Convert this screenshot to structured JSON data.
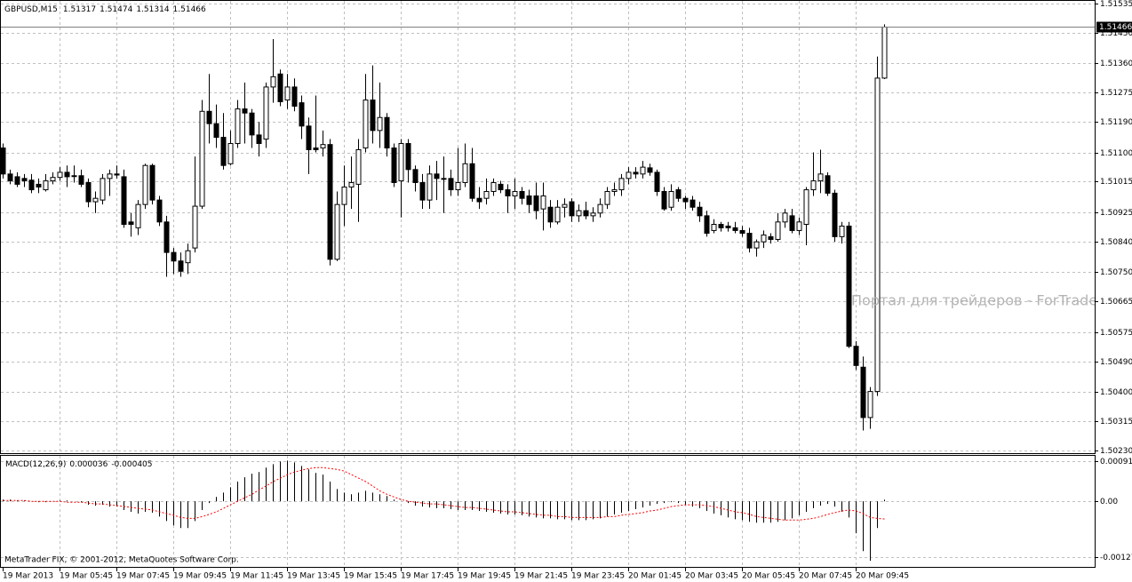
{
  "chart_data": [
    {
      "type": "candlestick",
      "title": "GBPUSD,M15",
      "categories": [
        "19 Mar 2013",
        null,
        null,
        null,
        null,
        null,
        null,
        null,
        "19 Mar 05:45",
        null,
        null,
        null,
        null,
        null,
        null,
        null,
        "19 Mar 07:45",
        null,
        null,
        null,
        null,
        null,
        null,
        null,
        "19 Mar 09:45",
        null,
        null,
        null,
        null,
        null,
        null,
        null,
        "19 Mar 11:45",
        null,
        null,
        null,
        null,
        null,
        null,
        null,
        "19 Mar 13:45",
        null,
        null,
        null,
        null,
        null,
        null,
        null,
        "19 Mar 15:45",
        null,
        null,
        null,
        null,
        null,
        null,
        null,
        "19 Mar 17:45",
        null,
        null,
        null,
        null,
        null,
        null,
        null,
        "19 Mar 19:45",
        null,
        null,
        null,
        null,
        null,
        null,
        null,
        "19 Mar 21:45",
        null,
        null,
        null,
        null,
        null,
        null,
        null,
        "19 Mar 23:45",
        null,
        null,
        null,
        null,
        null,
        null,
        null,
        "20 Mar 01:45",
        null,
        null,
        null,
        null,
        null,
        null,
        null,
        "20 Mar 03:45",
        null,
        null,
        null,
        null,
        null,
        null,
        null,
        "20 Mar 05:45",
        null,
        null,
        null,
        null,
        null,
        null,
        null,
        "20 Mar 07:45",
        null,
        null,
        null,
        null,
        null,
        null,
        null,
        "20 Mar 09:45",
        null,
        null,
        null,
        null
      ],
      "open": [
        1.51113,
        1.51037,
        1.51029,
        1.51024,
        1.51019,
        1.51007,
        1.50991,
        1.51017,
        1.51027,
        1.51042,
        1.51032,
        1.51032,
        1.51012,
        1.50956,
        1.50961,
        1.51024,
        1.51037,
        1.51029,
        1.50897,
        1.5088,
        1.50948,
        1.51062,
        1.50961,
        1.50897,
        1.50808,
        1.50783,
        1.50778,
        1.50821,
        1.50943,
        1.5122,
        1.51184,
        1.51144,
        1.51067,
        1.51126,
        1.51227,
        1.51215,
        1.51151,
        1.51139,
        1.51291,
        1.51329,
        1.51253,
        1.51291,
        1.51245,
        1.51177,
        1.51113,
        1.51113,
        1.51123,
        1.50788,
        1.50948,
        1.50999,
        1.51007,
        1.51113,
        1.51253,
        1.51164,
        1.51202,
        1.51113,
        1.51017,
        1.51126,
        1.5105,
        1.51012,
        1.50961,
        1.51037,
        1.51024,
        1.51024,
        1.50991,
        1.51012,
        1.51067,
        1.50966,
        1.50966,
        1.50986,
        1.51007,
        1.50991,
        1.50973,
        1.50986,
        1.50973,
        1.50973,
        1.50935,
        1.5094,
        1.50897,
        1.5094,
        1.50956,
        1.50915,
        1.5093,
        1.50915,
        1.50923,
        1.50948,
        1.50986,
        1.50991,
        1.51024,
        1.51042,
        1.51037,
        1.51055,
        1.51042,
        1.50986,
        1.5094,
        1.50991,
        1.50966,
        1.50961,
        1.5094,
        1.50915,
        1.50872,
        1.5089,
        1.50885,
        1.5088,
        1.50872,
        1.50864,
        1.50821,
        1.50839,
        1.50854,
        1.50846,
        1.50897,
        1.50915,
        1.50872,
        1.5089,
        1.50991,
        1.51017,
        1.51032,
        1.50981,
        1.50854,
        1.50885,
        1.50534,
        1.50473,
        1.50326,
        1.50402,
        1.51317
      ],
      "high": [
        1.51126,
        1.5105,
        1.51042,
        1.51037,
        1.51037,
        1.51024,
        1.51037,
        1.51042,
        1.51057,
        1.51062,
        1.51062,
        1.5105,
        1.51024,
        1.50986,
        1.51037,
        1.5105,
        1.51062,
        1.5105,
        1.50923,
        1.50961,
        1.51067,
        1.51067,
        1.50973,
        1.50915,
        1.50821,
        1.50808,
        1.50834,
        1.51088,
        1.51253,
        1.51329,
        1.5124,
        1.51215,
        1.51164,
        1.51253,
        1.51304,
        1.51227,
        1.51189,
        1.51304,
        1.51431,
        1.51342,
        1.51329,
        1.51316,
        1.51266,
        1.51202,
        1.51266,
        1.51164,
        1.51139,
        1.50986,
        1.51062,
        1.51088,
        1.51139,
        1.51329,
        1.51354,
        1.51304,
        1.51215,
        1.51126,
        1.51139,
        1.51139,
        1.51062,
        1.51037,
        1.51062,
        1.51075,
        1.51088,
        1.5105,
        1.51113,
        1.51126,
        1.51113,
        1.50999,
        1.51024,
        1.51024,
        1.51017,
        1.51007,
        1.51024,
        1.50999,
        1.50991,
        1.51012,
        1.51012,
        1.50961,
        1.50961,
        1.50966,
        1.50966,
        1.50948,
        1.50956,
        1.5094,
        1.50966,
        1.50999,
        1.51012,
        1.51037,
        1.51057,
        1.51057,
        1.51075,
        1.51067,
        1.5105,
        1.50999,
        1.51007,
        1.50999,
        1.50973,
        1.50973,
        1.50956,
        1.5093,
        1.50905,
        1.50897,
        1.50897,
        1.50897,
        1.50885,
        1.5088,
        1.50846,
        1.50872,
        1.50864,
        1.50923,
        1.50935,
        1.50935,
        1.5091,
        1.50999,
        1.511,
        1.51108,
        1.51042,
        1.50991,
        1.50897,
        1.50897,
        1.50549,
        1.50504,
        1.50415,
        1.5138,
        1.51474
      ],
      "low": [
        1.51024,
        1.51007,
        1.50999,
        1.50999,
        1.50981,
        1.50981,
        1.50986,
        1.51007,
        1.51017,
        1.50999,
        1.51012,
        1.50999,
        1.5094,
        1.50923,
        1.50948,
        1.50973,
        1.51024,
        1.5088,
        1.50854,
        1.50859,
        1.50935,
        1.50948,
        1.50885,
        1.50737,
        1.50745,
        1.50737,
        1.50745,
        1.50808,
        1.50935,
        1.51126,
        1.51113,
        1.5105,
        1.51062,
        1.51113,
        1.51126,
        1.51113,
        1.51088,
        1.51113,
        1.51245,
        1.51235,
        1.51227,
        1.5122,
        1.51139,
        1.51037,
        1.511,
        1.51088,
        1.5077,
        1.50783,
        1.50885,
        1.50935,
        1.50897,
        1.511,
        1.51126,
        1.51113,
        1.51088,
        1.50999,
        1.5091,
        1.51012,
        1.50986,
        1.50935,
        1.50935,
        1.50961,
        1.50923,
        1.50973,
        1.50973,
        1.50999,
        1.50956,
        1.50935,
        1.50948,
        1.50973,
        1.50981,
        1.50923,
        1.50935,
        1.50948,
        1.50923,
        1.50905,
        1.50872,
        1.5088,
        1.5089,
        1.5091,
        1.50897,
        1.50897,
        1.50905,
        1.50897,
        1.5091,
        1.50935,
        1.50973,
        1.50973,
        1.51007,
        1.51024,
        1.51024,
        1.51032,
        1.50973,
        1.5093,
        1.5093,
        1.50956,
        1.50935,
        1.5093,
        1.50897,
        1.50854,
        1.50864,
        1.50869,
        1.50869,
        1.50864,
        1.50854,
        1.50808,
        1.50796,
        1.50821,
        1.50834,
        1.50839,
        1.5088,
        1.50864,
        1.50859,
        1.50829,
        1.50973,
        1.50981,
        1.50973,
        1.50839,
        1.50834,
        1.50529,
        1.50465,
        1.50288,
        1.50293,
        1.50389,
        1.51314
      ],
      "close": [
        1.51037,
        1.51017,
        1.51007,
        1.51017,
        1.50991,
        1.50999,
        1.51017,
        1.51027,
        1.51042,
        1.51029,
        1.51032,
        1.51007,
        1.50956,
        1.50966,
        1.51024,
        1.51037,
        1.51034,
        1.5089,
        1.5089,
        1.50948,
        1.51062,
        1.50961,
        1.50897,
        1.50808,
        1.50783,
        1.50753,
        1.50813,
        1.50943,
        1.5122,
        1.51184,
        1.51144,
        1.51062,
        1.51126,
        1.51227,
        1.51215,
        1.51151,
        1.51126,
        1.51291,
        1.51321,
        1.51248,
        1.51291,
        1.51235,
        1.51177,
        1.51108,
        1.51108,
        1.51123,
        1.50788,
        1.50948,
        1.50999,
        1.51012,
        1.51108,
        1.51253,
        1.51164,
        1.51202,
        1.51113,
        1.51012,
        1.51126,
        1.5105,
        1.51012,
        1.50961,
        1.51037,
        1.51024,
        1.51024,
        1.50991,
        1.51012,
        1.51067,
        1.50966,
        1.50956,
        1.50986,
        1.51012,
        1.50991,
        1.50973,
        1.50986,
        1.50966,
        1.50948,
        1.5093,
        1.50973,
        1.50897,
        1.5094,
        1.50948,
        1.50915,
        1.5093,
        1.50915,
        1.50923,
        1.50948,
        1.50986,
        1.50991,
        1.51024,
        1.51042,
        1.51037,
        1.51057,
        1.51042,
        1.50986,
        1.50935,
        1.50986,
        1.50966,
        1.50956,
        1.5094,
        1.50915,
        1.50864,
        1.5089,
        1.5088,
        1.5088,
        1.50872,
        1.50864,
        1.50821,
        1.50839,
        1.50859,
        1.50846,
        1.50897,
        1.50923,
        1.50872,
        1.50897,
        1.50991,
        1.51017,
        1.51037,
        1.50981,
        1.50854,
        1.50885,
        1.50534,
        1.50478,
        1.50326,
        1.50402,
        1.51317,
        1.51466
      ],
      "up_color": "#ffffff",
      "down_color": "#000000",
      "outline_color": "#000000",
      "ylim": [
        1.50222,
        1.51545
      ],
      "yticks": [
        1.51535,
        {
          "value": 1.5145,
          "label": "1.51450"
        },
        {
          "value": 1.5136,
          "label": "1.51360"
        },
        1.51275,
        {
          "value": 1.5119,
          "label": "1.51190"
        },
        {
          "value": 1.511,
          "label": "1.51100"
        },
        1.51015,
        1.50925,
        {
          "value": 1.5084,
          "label": "1.50840"
        },
        {
          "value": 1.5075,
          "label": "1.50750"
        },
        1.50665,
        1.50575,
        {
          "value": 1.5049,
          "label": "1.50490"
        },
        {
          "value": 1.504,
          "label": "1.50400"
        },
        1.50315,
        {
          "value": 1.5023,
          "label": "1.50230"
        }
      ],
      "grid": true
    },
    {
      "type": "macd",
      "title": "MACD(12,26,9)",
      "series": [
        {
          "color": "#000000",
          "style": "histogram",
          "values": [
            4e-05,
            4e-05,
            2e-05,
            2e-05,
            0,
            -2e-05,
            -2e-05,
            0,
            2e-05,
            2e-05,
            0,
            -2e-05,
            -8e-05,
            -0.0001,
            -8e-05,
            -0.00012,
            -0.00012,
            -0.0002,
            -0.00024,
            -0.00028,
            -0.00024,
            -0.00026,
            -0.00035,
            -0.00045,
            -0.00055,
            -0.00061,
            -0.00061,
            -0.00045,
            -0.0002,
            -4e-05,
            0.0001,
            0.0002,
            0.00032,
            0.00045,
            0.00055,
            0.00063,
            0.00067,
            0.00077,
            0.00085,
            0.00091,
            0.00093,
            0.00089,
            0.00081,
            0.00073,
            0.00065,
            0.00061,
            0.00045,
            0.00028,
            0.0002,
            0.00016,
            0.0002,
            0.00024,
            0.0002,
            0.00016,
            0.00012,
            4e-05,
            0,
            -4e-05,
            -0.0001,
            -0.00012,
            -0.00014,
            -0.00016,
            -0.00016,
            -0.00018,
            -0.0002,
            -0.0002,
            -0.0002,
            -0.00022,
            -0.00024,
            -0.00026,
            -0.00028,
            -0.0003,
            -0.0003,
            -0.00032,
            -0.00035,
            -0.00037,
            -0.00039,
            -0.00039,
            -0.00041,
            -0.00041,
            -0.00043,
            -0.00043,
            -0.00043,
            -0.00041,
            -0.00039,
            -0.00035,
            -0.0003,
            -0.00026,
            -0.00022,
            -0.00018,
            -0.00014,
            -0.0001,
            -6e-05,
            -4e-05,
            -2e-05,
            -4e-05,
            -8e-05,
            -0.00012,
            -0.00016,
            -0.00022,
            -0.00028,
            -0.00032,
            -0.00037,
            -0.00041,
            -0.00043,
            -0.00047,
            -0.00049,
            -0.00049,
            -0.00049,
            -0.00047,
            -0.00043,
            -0.00039,
            -0.00032,
            -0.00024,
            -0.00016,
            -0.0001,
            -6e-05,
            -0.00012,
            -0.00024,
            -0.00037,
            -0.00073,
            -0.00114,
            -0.00136,
            -0.00061,
            3.6e-05
          ]
        },
        {
          "color": "#ff0000",
          "style": "dotted",
          "values": [
            2e-05,
            2e-05,
            2e-05,
            2e-05,
            0,
            0,
            0,
            0,
            0,
            -2e-05,
            -2e-05,
            -2e-05,
            -4e-05,
            -6e-05,
            -6e-05,
            -8e-05,
            -0.0001,
            -0.00012,
            -0.00014,
            -0.00016,
            -0.00018,
            -0.0002,
            -0.00024,
            -0.00028,
            -0.00032,
            -0.00037,
            -0.00039,
            -0.00039,
            -0.00035,
            -0.0003,
            -0.00024,
            -0.00016,
            -8e-05,
            0,
            8e-05,
            0.00016,
            0.00026,
            0.00035,
            0.00045,
            0.00053,
            0.00061,
            0.00067,
            0.00071,
            0.00075,
            0.00077,
            0.00077,
            0.00075,
            0.00073,
            0.00069,
            0.00061,
            0.00053,
            0.00045,
            0.00035,
            0.00024,
            0.00016,
            0.0001,
            4e-05,
            0,
            -2e-05,
            -4e-05,
            -6e-05,
            -6e-05,
            -8e-05,
            -0.0001,
            -0.00012,
            -0.00014,
            -0.00014,
            -0.00016,
            -0.00018,
            -0.0002,
            -0.00022,
            -0.00024,
            -0.00024,
            -0.00026,
            -0.00028,
            -0.0003,
            -0.00032,
            -0.00032,
            -0.00035,
            -0.00035,
            -0.00037,
            -0.00037,
            -0.00037,
            -0.00037,
            -0.00037,
            -0.00035,
            -0.00035,
            -0.00032,
            -0.0003,
            -0.00028,
            -0.00026,
            -0.00022,
            -0.0002,
            -0.00016,
            -0.00012,
            -0.0001,
            -8e-05,
            -8e-05,
            -8e-05,
            -0.0001,
            -0.00012,
            -0.00016,
            -0.0002,
            -0.00024,
            -0.00026,
            -0.0003,
            -0.00035,
            -0.00037,
            -0.00039,
            -0.00041,
            -0.00043,
            -0.00043,
            -0.00043,
            -0.00041,
            -0.00039,
            -0.00035,
            -0.0003,
            -0.00026,
            -0.00022,
            -0.0002,
            -0.00022,
            -0.00028,
            -0.00037,
            -0.00039,
            -0.000405
          ]
        }
      ],
      "ylim": [
        -0.0015,
        0.00104
      ],
      "yticks": [
        0.000913,
        {
          "value": 0,
          "label": "0.00"
        },
        -0.001278
      ],
      "grid": true
    }
  ],
  "watermark": "Портал для трейдеров - ForTrader",
  "footer": "MetaTrader FIX, © 2001-2012, MetaQuotes Software Corp."
}
